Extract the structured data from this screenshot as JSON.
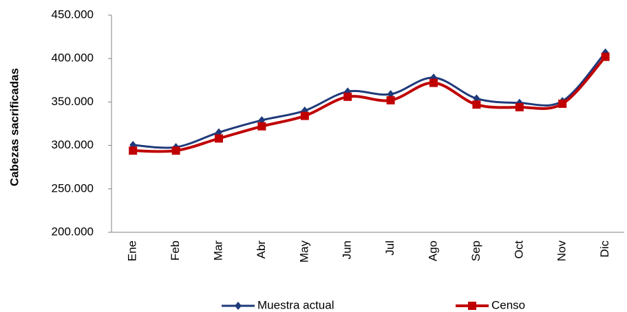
{
  "chart_data": {
    "type": "line",
    "y_label": "Cabezas sacrificadas",
    "categories": [
      "Ene",
      "Feb",
      "Mar",
      "Abr",
      "May",
      "Jun",
      "Jul",
      "Ago",
      "Sep",
      "Oct",
      "Nov",
      "Dic"
    ],
    "series": [
      {
        "name": "Muestra actual",
        "color": "#1f3a7a",
        "marker": "diamond",
        "values": [
          300500,
          298000,
          315000,
          329000,
          340000,
          362000,
          359000,
          378000,
          354000,
          349000,
          351000,
          407000
        ]
      },
      {
        "name": "Censo",
        "color": "#c00000",
        "marker": "square",
        "values": [
          294000,
          294000,
          308000,
          322000,
          334000,
          356000,
          352000,
          372000,
          347000,
          344000,
          348000,
          402000
        ]
      }
    ],
    "ylim": [
      200000,
      450000
    ],
    "yticks": [
      {
        "value": 200000,
        "label": "200.000"
      },
      {
        "value": 250000,
        "label": "250.000"
      },
      {
        "value": 300000,
        "label": "300.000"
      },
      {
        "value": 350000,
        "label": "350.000"
      },
      {
        "value": 400000,
        "label": "400.000"
      },
      {
        "value": 450000,
        "label": "450.000"
      }
    ],
    "grid": false,
    "legend": "bottom"
  }
}
